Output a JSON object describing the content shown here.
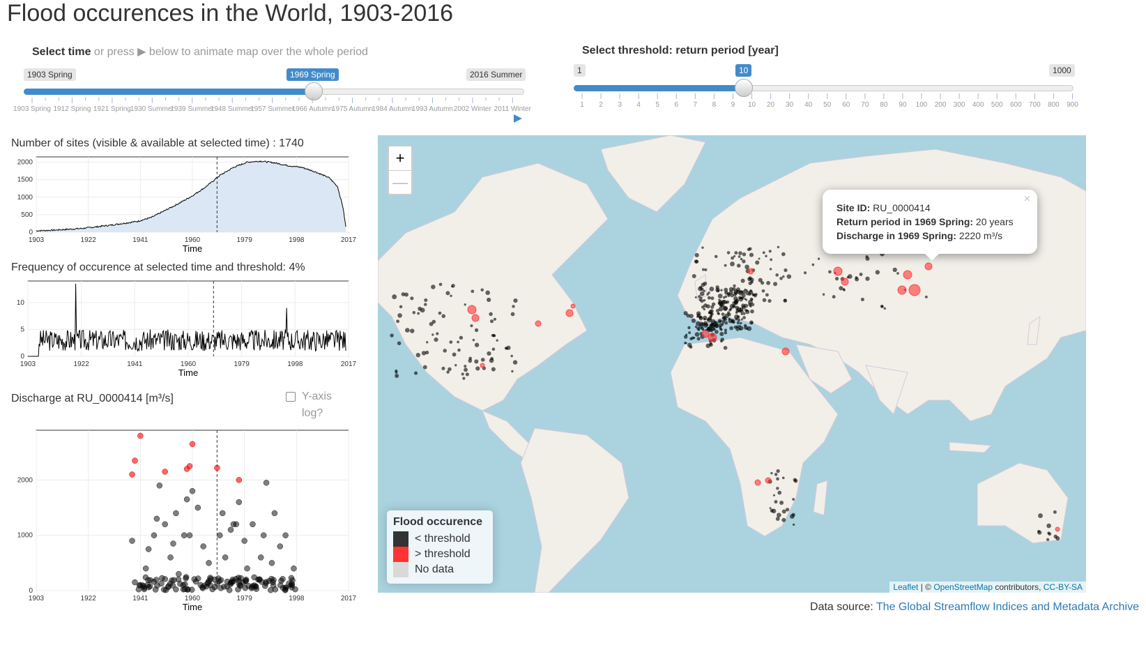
{
  "page": {
    "title": "Flood occurences in the World, 1903-2016"
  },
  "time_slider": {
    "label_bold": "Select time",
    "label_rest": " or press ▶ below to animate map over the whole period",
    "min_label": "1903 Spring",
    "max_label": "2016 Summer",
    "value_label": "1969 Spring",
    "value_fraction": 0.58,
    "tick_labels": [
      "1903 Spring",
      "1912 Spring",
      "1921 Spring",
      "1930 Summer",
      "1939 Summer",
      "1948 Summer",
      "1957 Summer",
      "1966 Autumn",
      "1975 Autumn",
      "1984 Autumn",
      "1993 Autumn",
      "2002 Winter",
      "2011 Winter"
    ],
    "play_icon": "play-icon"
  },
  "threshold_slider": {
    "label": "Select threshold: return period [year]",
    "min_label": "1",
    "max_label": "1000",
    "value_label": "10",
    "value_fraction": 0.34,
    "tick_labels": [
      "1",
      "2",
      "3",
      "4",
      "5",
      "6",
      "7",
      "8",
      "9",
      "10",
      "20",
      "30",
      "40",
      "50",
      "60",
      "70",
      "80",
      "90",
      "100",
      "200",
      "300",
      "400",
      "500",
      "600",
      "700",
      "800",
      "900"
    ]
  },
  "sites_chart": {
    "title": "Number of sites (visible & available at selected time) : 1740",
    "xlabel": "Time",
    "xticks": [
      "1903",
      "1922",
      "1941",
      "1960",
      "1979",
      "1998",
      "2017"
    ],
    "yticks": [
      "0",
      "500",
      "1000",
      "1500",
      "2000"
    ]
  },
  "freq_chart": {
    "title": "Frequency of occurence at selected time and threshold: 4%",
    "xlabel": "Time",
    "xticks": [
      "1903",
      "1922",
      "1941",
      "1960",
      "1979",
      "1998",
      "2017"
    ],
    "yticks": [
      "0",
      "5",
      "10"
    ]
  },
  "discharge_chart": {
    "title": "Discharge at RU_0000414 [m³/s]",
    "log_label_1": "Y-axis",
    "log_label_2": "log?",
    "xlabel": "Time",
    "xticks": [
      "1903",
      "1922",
      "1941",
      "1960",
      "1979",
      "1998",
      "2017"
    ],
    "yticks": [
      "0",
      "1000",
      "2000"
    ]
  },
  "chart_data": [
    {
      "type": "area",
      "title": "Number of sites (visible & available at selected time) : 1740",
      "xlabel": "Time",
      "ylabel": "",
      "xlim": [
        1903,
        2017
      ],
      "ylim": [
        0,
        2150
      ],
      "x": [
        1903,
        1910,
        1920,
        1930,
        1940,
        1945,
        1950,
        1955,
        1960,
        1965,
        1970,
        1975,
        1980,
        1985,
        1990,
        1995,
        2000,
        2005,
        2010,
        2013,
        2015,
        2016
      ],
      "y": [
        40,
        60,
        110,
        200,
        310,
        420,
        620,
        820,
        1040,
        1300,
        1620,
        1850,
        2000,
        2030,
        1980,
        1900,
        1850,
        1720,
        1550,
        1300,
        700,
        150
      ],
      "vline": 1969
    },
    {
      "type": "line",
      "title": "Frequency of occurence at selected time and threshold: 4%",
      "xlabel": "Time",
      "ylabel": "",
      "xlim": [
        1903,
        2017
      ],
      "ylim": [
        0,
        14
      ],
      "peaks": [
        {
          "x": 1920,
          "y": 13.5
        },
        {
          "x": 1995,
          "y": 9
        }
      ],
      "typical_range": [
        1,
        5
      ],
      "vline": 1969
    },
    {
      "type": "scatter",
      "title": "Discharge at RU_0000414 [m³/s]",
      "xlabel": "Time",
      "ylabel": "",
      "xlim": [
        1903,
        2017
      ],
      "ylim": [
        0,
        2900
      ],
      "series": [
        {
          "color": "#ff0000",
          "points": [
            [
              1938,
              2100
            ],
            [
              1939,
              2350
            ],
            [
              1941,
              2800
            ],
            [
              1950,
              2150
            ],
            [
              1958,
              2200
            ],
            [
              1959,
              2250
            ],
            [
              1960,
              2650
            ],
            [
              1969,
              2220
            ],
            [
              1977,
              2000
            ]
          ]
        },
        {
          "color": "#000000",
          "points": [
            [
              1938,
              900
            ],
            [
              1939,
              150
            ],
            [
              1941,
              100
            ],
            [
              1943,
              400
            ],
            [
              1944,
              750
            ],
            [
              1946,
              1000
            ],
            [
              1947,
              1300
            ],
            [
              1948,
              1900
            ],
            [
              1950,
              1200
            ],
            [
              1952,
              600
            ],
            [
              1953,
              850
            ],
            [
              1954,
              1400
            ],
            [
              1955,
              300
            ],
            [
              1957,
              1000
            ],
            [
              1958,
              1650
            ],
            [
              1959,
              1000
            ],
            [
              1960,
              1800
            ],
            [
              1962,
              1500
            ],
            [
              1964,
              800
            ],
            [
              1966,
              500
            ],
            [
              1968,
              200
            ],
            [
              1970,
              1000
            ],
            [
              1971,
              1400
            ],
            [
              1972,
              600
            ],
            [
              1974,
              1100
            ],
            [
              1975,
              1200
            ],
            [
              1976,
              1200
            ],
            [
              1977,
              1600
            ],
            [
              1979,
              900
            ],
            [
              1980,
              400
            ],
            [
              1982,
              1200
            ],
            [
              1984,
              200
            ],
            [
              1985,
              600
            ],
            [
              1986,
              1000
            ],
            [
              1987,
              1950
            ],
            [
              1989,
              500
            ],
            [
              1990,
              1400
            ],
            [
              1992,
              800
            ],
            [
              1994,
              1000
            ],
            [
              1996,
              100
            ],
            [
              1997,
              400
            ]
          ]
        }
      ],
      "vline": 1969
    }
  ],
  "map": {
    "zoom_in": "+",
    "zoom_out": "—",
    "popup": {
      "close": "×",
      "site_label": "Site ID:",
      "site_value": "RU_0000414",
      "return_label": "Return period in 1969 Spring:",
      "return_value": "20 years",
      "discharge_label": "Discharge in 1969 Spring:",
      "discharge_value": "2220 m³/s"
    },
    "legend": {
      "title": "Flood occurence",
      "items": [
        {
          "label": "< threshold",
          "color": "#333333"
        },
        {
          "label": "> threshold",
          "color": "#ff3333"
        },
        {
          "label": "No data",
          "color": "#d9d9d9"
        }
      ]
    },
    "attribution": {
      "leaflet": "Leaflet",
      "sep": " | © ",
      "osm": "OpenStreetMap",
      "mid": " contributors, ",
      "license": "CC-BY-SA"
    }
  },
  "source": {
    "prefix": "Data source: ",
    "link": "The Global Streamflow Indices and Metadata Archive"
  },
  "colors": {
    "accent": "#428bca",
    "ocean": "#aad3df",
    "land": "#f2efe9",
    "red": "#ff3333"
  }
}
